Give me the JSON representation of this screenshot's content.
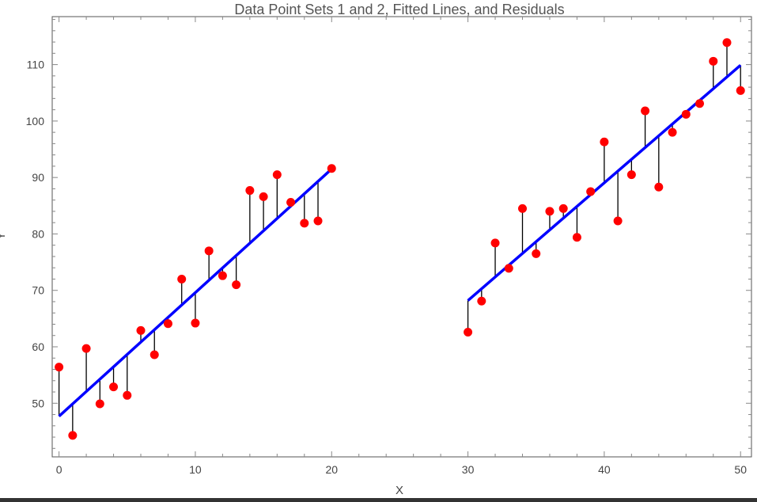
{
  "chart_data": {
    "type": "scatter",
    "title": "Data Point Sets 1 and 2, Fitted Lines, and Residuals",
    "xlabel": "X",
    "ylabel": "Y",
    "xlim": [
      -0.5,
      50.8
    ],
    "ylim": [
      40.5,
      118.5
    ],
    "x_ticks": [
      0,
      10,
      20,
      30,
      40,
      50
    ],
    "y_ticks": [
      50,
      60,
      70,
      80,
      90,
      100,
      110
    ],
    "grid": false,
    "colors": {
      "points": "#ff0000",
      "fit_line": "#0000ff",
      "residuals": "#000000",
      "frame": "#555555"
    },
    "series": [
      {
        "x": [
          0,
          1,
          2,
          3,
          4,
          5,
          6,
          7,
          8,
          9,
          10,
          11,
          12,
          13,
          14,
          15,
          16,
          17,
          18,
          19,
          20
        ],
        "y": [
          56.4,
          44.3,
          59.7,
          49.9,
          52.9,
          51.4,
          62.9,
          58.6,
          64.1,
          72.0,
          64.2,
          77.0,
          72.6,
          71.0,
          87.7,
          86.6,
          90.5,
          85.6,
          81.9,
          82.3,
          91.6
        ],
        "fit": {
          "x0": 0,
          "y0": 47.7,
          "x1": 20,
          "y1": 91.5
        }
      },
      {
        "x": [
          30,
          31,
          32,
          33,
          34,
          35,
          36,
          37,
          38,
          39,
          40,
          41,
          42,
          43,
          44,
          45,
          46,
          47,
          48,
          49,
          50
        ],
        "y": [
          62.6,
          68.1,
          78.4,
          73.9,
          84.5,
          76.5,
          84.0,
          84.5,
          79.4,
          87.5,
          96.3,
          82.3,
          90.5,
          101.8,
          88.3,
          98.0,
          101.2,
          103.1,
          110.6,
          113.9,
          105.4
        ],
        "fit": {
          "x0": 30,
          "y0": 68.2,
          "x1": 50,
          "y1": 109.9
        }
      }
    ]
  }
}
